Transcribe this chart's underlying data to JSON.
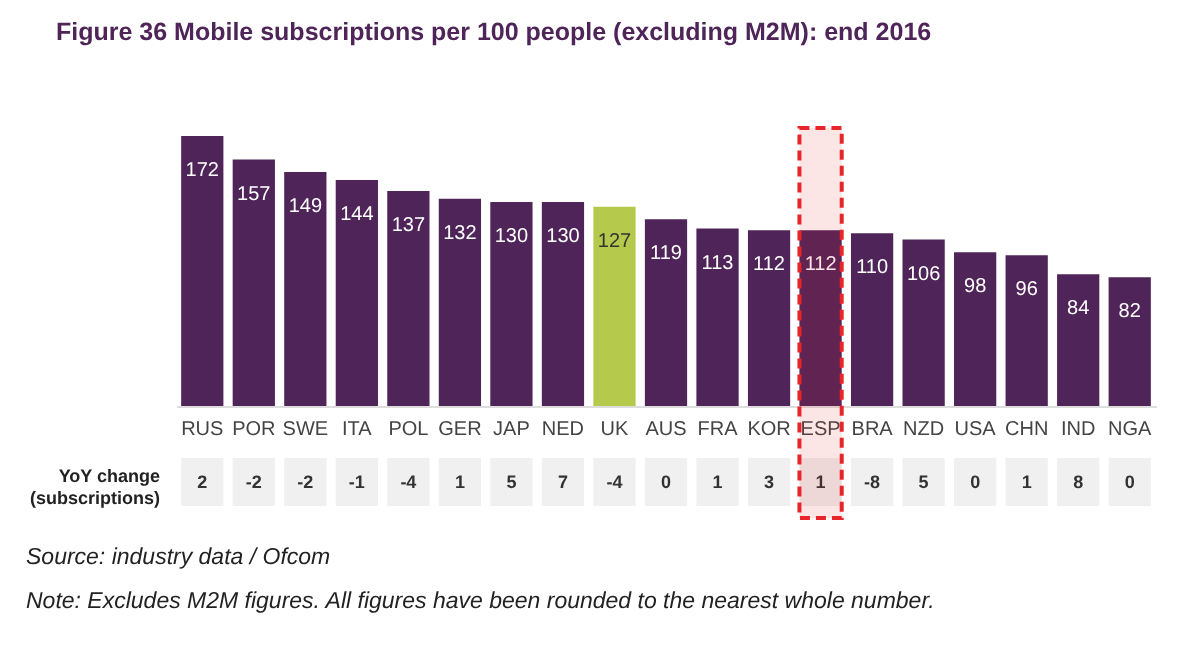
{
  "chart_data": {
    "type": "bar",
    "title": "Figure 36    Mobile subscriptions per 100 people (excluding M2M): end 2016",
    "categories": [
      "RUS",
      "POR",
      "SWE",
      "ITA",
      "POL",
      "GER",
      "JAP",
      "NED",
      "UK",
      "AUS",
      "FRA",
      "KOR",
      "ESP",
      "BRA",
      "NZD",
      "USA",
      "CHN",
      "IND",
      "NGA"
    ],
    "values": [
      172,
      157,
      149,
      144,
      137,
      132,
      130,
      130,
      127,
      119,
      113,
      112,
      112,
      110,
      106,
      98,
      96,
      84,
      82
    ],
    "colors": [
      "#4f2458",
      "#4f2458",
      "#4f2458",
      "#4f2458",
      "#4f2458",
      "#4f2458",
      "#4f2458",
      "#4f2458",
      "#b5c94c",
      "#4f2458",
      "#4f2458",
      "#4f2458",
      "#4f2458",
      "#4f2458",
      "#4f2458",
      "#4f2458",
      "#4f2458",
      "#4f2458",
      "#4f2458"
    ],
    "data_labels": true,
    "bands": [
      {
        "axis": "x",
        "from": "ESP",
        "to": "ESP",
        "color": "#e8262a"
      }
    ],
    "annotations": [
      "YoY change (subscriptions)",
      "2",
      "-2",
      "-2",
      "-1",
      "-4",
      "1",
      "5",
      "7",
      "-4",
      "0",
      "1",
      "3",
      "1",
      "-8",
      "5",
      "0",
      "1",
      "8",
      "0",
      "Source: industry data / Ofcom",
      "Note: Excludes M2M figures. All figures have been rounded to the nearest whole number."
    ]
  }
}
